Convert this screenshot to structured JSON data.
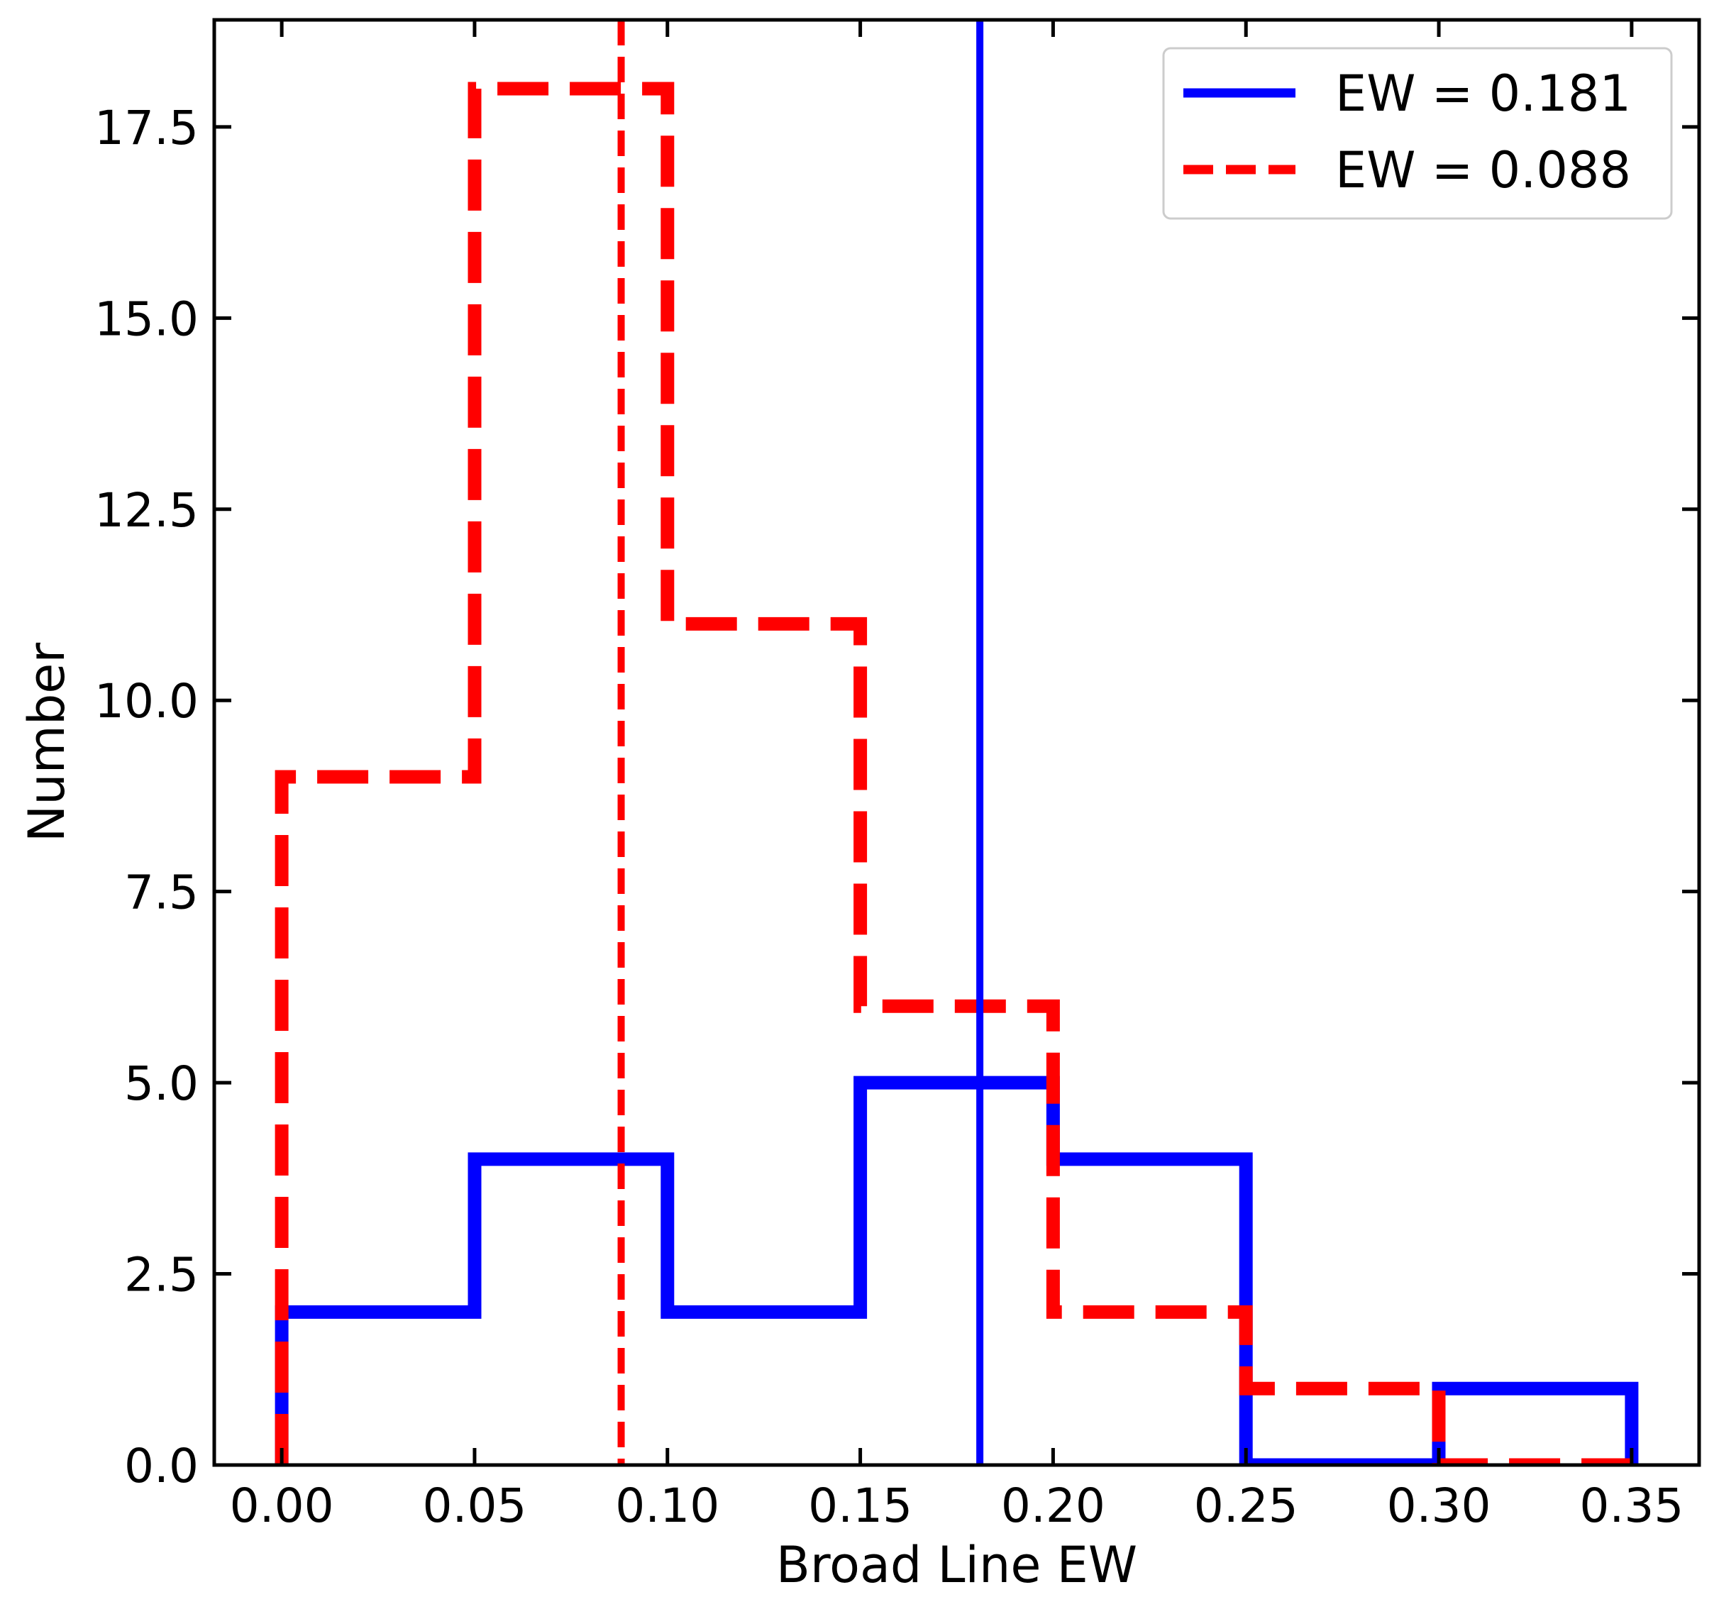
{
  "chart_data": {
    "type": "histogram",
    "xlabel": "Broad Line EW",
    "ylabel": "Number",
    "xlim": [
      -0.0175,
      0.3675
    ],
    "ylim": [
      0,
      18.9
    ],
    "bin_edges": [
      0.0,
      0.05,
      0.1,
      0.15,
      0.2,
      0.25,
      0.3,
      0.35
    ],
    "x_ticks": [
      0.0,
      0.05,
      0.1,
      0.15,
      0.2,
      0.25,
      0.3,
      0.35
    ],
    "x_tick_labels": [
      "0.00",
      "0.05",
      "0.10",
      "0.15",
      "0.20",
      "0.25",
      "0.30",
      "0.35"
    ],
    "y_ticks": [
      0.0,
      2.5,
      5.0,
      7.5,
      10.0,
      12.5,
      15.0,
      17.5
    ],
    "y_tick_labels": [
      "0.0",
      "2.5",
      "5.0",
      "7.5",
      "10.0",
      "12.5",
      "15.0",
      "17.5"
    ],
    "grid": false,
    "legend_position": "top-right",
    "series": [
      {
        "name": "EW = 0.181",
        "style": "solid",
        "color": "#0000ff",
        "counts": [
          2,
          4,
          2,
          5,
          4,
          0,
          1
        ],
        "marker_line": 0.181
      },
      {
        "name": "EW = 0.088",
        "style": "dashed",
        "color": "#ff0000",
        "counts": [
          9,
          18,
          11,
          6,
          2,
          1,
          0
        ],
        "marker_line": 0.088
      }
    ]
  }
}
